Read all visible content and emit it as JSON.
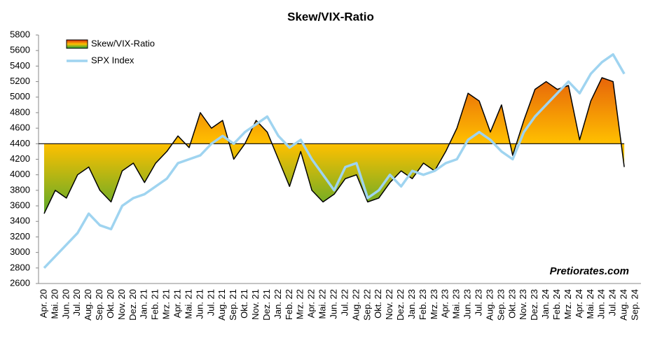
{
  "chart_data": {
    "type": "line",
    "title": "Skew/VIX-Ratio",
    "categories": [
      "Apr. 20",
      "Mai. 20",
      "Jun. 20",
      "Jul. 20",
      "Aug. 20",
      "Sep. 20",
      "Okt. 20",
      "Nov. 20",
      "Dez. 20",
      "Jan. 21",
      "Feb. 21",
      "Mrz. 21",
      "Apr. 21",
      "Mai. 21",
      "Jun. 21",
      "Jul. 21",
      "Aug. 21",
      "Sep. 21",
      "Okt. 21",
      "Nov. 21",
      "Dez. 21",
      "Jan. 22",
      "Feb. 22",
      "Mrz. 22",
      "Apr. 22",
      "Mai. 22",
      "Jun. 22",
      "Jul. 22",
      "Aug. 22",
      "Sep. 22",
      "Okt. 22",
      "Nov. 22",
      "Dez. 22",
      "Jan. 23",
      "Feb. 23",
      "Mrz. 23",
      "Apr. 23",
      "Mai. 23",
      "Jun. 23",
      "Jul. 23",
      "Aug. 23",
      "Sep. 23",
      "Okt. 23",
      "Nov. 23",
      "Dez. 23",
      "Jan. 24",
      "Feb. 24",
      "Mrz. 24",
      "Apr. 24",
      "Mai. 24",
      "Jun. 24",
      "Jul. 24",
      "Aug. 24",
      "Sep. 24"
    ],
    "series": [
      {
        "name": "Skew/VIX-Ratio",
        "color": "#000000",
        "fill": "area",
        "baseline": 4400,
        "gradient": [
          "#1aa03c",
          "#ffc000",
          "#d82a10"
        ],
        "values": [
          3500,
          3800,
          3700,
          4000,
          4100,
          3800,
          3650,
          4050,
          4150,
          3900,
          4150,
          4300,
          4500,
          4350,
          4800,
          4600,
          4700,
          4200,
          4400,
          4700,
          4550,
          4200,
          3850,
          4300,
          3800,
          3650,
          3750,
          3950,
          4000,
          3650,
          3700,
          3900,
          4050,
          3950,
          4150,
          4050,
          4300,
          4600,
          5050,
          4950,
          4550,
          4900,
          4250,
          4700,
          5100,
          5200,
          5100,
          5150,
          4450,
          4950,
          5250,
          5200,
          4100,
          null
        ]
      },
      {
        "name": "SPX Index",
        "color": "#9fd4f0",
        "values": [
          2800,
          2950,
          3100,
          3250,
          3500,
          3350,
          3300,
          3600,
          3700,
          3750,
          3850,
          3950,
          4150,
          4200,
          4250,
          4400,
          4500,
          4400,
          4550,
          4650,
          4750,
          4500,
          4350,
          4450,
          4200,
          4000,
          3800,
          4100,
          4150,
          3700,
          3800,
          4000,
          3850,
          4050,
          4000,
          4050,
          4150,
          4200,
          4450,
          4550,
          4450,
          4300,
          4200,
          4550,
          4750,
          4900,
          5050,
          5200,
          5050,
          5300,
          5450,
          5550,
          5300,
          null
        ]
      }
    ],
    "ylim": [
      2600,
      5800
    ],
    "yticks": [
      2600,
      2800,
      3000,
      3200,
      3400,
      3600,
      3800,
      4000,
      4200,
      4400,
      4600,
      4800,
      5000,
      5200,
      5400,
      5600,
      5800
    ],
    "annotation": "Pretiorates.com",
    "legend": "top-left"
  }
}
